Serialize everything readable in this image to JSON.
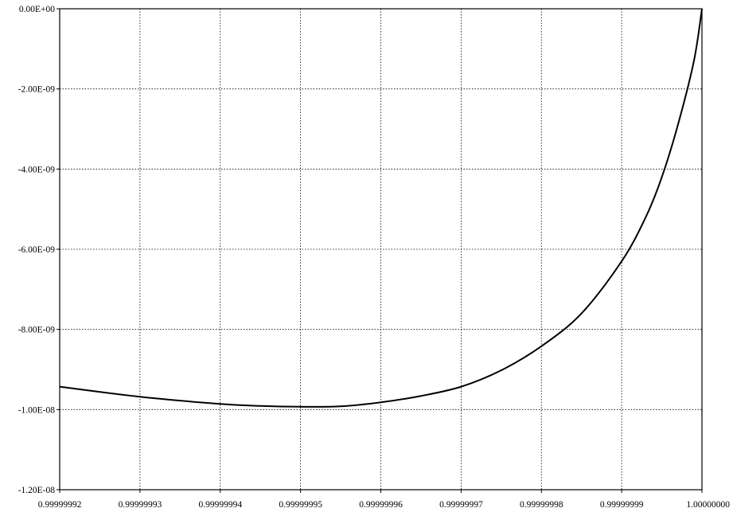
{
  "chart_data": {
    "type": "line",
    "title": "",
    "xlabel": "",
    "ylabel": "",
    "xlim": [
      0.99999992,
      1.0
    ],
    "ylim": [
      -1.2e-08,
      0.0
    ],
    "grid": true,
    "legend": "none",
    "x_ticks": [
      {
        "value": 0.99999992,
        "label": "0.99999992"
      },
      {
        "value": 0.99999993,
        "label": "0.99999993"
      },
      {
        "value": 0.99999994,
        "label": "0.99999994"
      },
      {
        "value": 0.99999995,
        "label": "0.99999995"
      },
      {
        "value": 0.99999996,
        "label": "0.99999996"
      },
      {
        "value": 0.99999997,
        "label": "0.99999997"
      },
      {
        "value": 0.99999998,
        "label": "0.99999998"
      },
      {
        "value": 0.99999999,
        "label": "0.99999999"
      },
      {
        "value": 1.0,
        "label": "1.00000000"
      }
    ],
    "y_ticks": [
      {
        "value": 0.0,
        "label": "0.00E+00"
      },
      {
        "value": -2e-09,
        "label": "-2.00E-09"
      },
      {
        "value": -4e-09,
        "label": "-4.00E-09"
      },
      {
        "value": -6e-09,
        "label": "-6.00E-09"
      },
      {
        "value": -8e-09,
        "label": "-8.00E-09"
      },
      {
        "value": -1e-08,
        "label": "-1.00E-08"
      },
      {
        "value": -1.2e-08,
        "label": "-1.20E-08"
      }
    ],
    "series": [
      {
        "color": "#000000",
        "points": [
          [
            0.99999992,
            -9.43e-09
          ],
          [
            0.99999993,
            -9.68e-09
          ],
          [
            0.99999994,
            -9.86e-09
          ],
          [
            0.999999945,
            -9.91e-09
          ],
          [
            0.99999995,
            -9.93e-09
          ],
          [
            0.999999955,
            -9.92e-09
          ],
          [
            0.99999996,
            -9.82e-09
          ],
          [
            0.999999965,
            -9.66e-09
          ],
          [
            0.99999997,
            -9.43e-09
          ],
          [
            0.999999975,
            -9.02e-09
          ],
          [
            0.99999998,
            -8.42e-09
          ],
          [
            0.999999985,
            -7.6e-09
          ],
          [
            0.99999999,
            -6.3e-09
          ],
          [
            0.999999993,
            -5.2e-09
          ],
          [
            0.999999995,
            -4.2e-09
          ],
          [
            0.999999997,
            -2.9e-09
          ],
          [
            0.999999999,
            -1.3e-09
          ],
          [
            1.0,
            0.0
          ]
        ]
      }
    ]
  }
}
